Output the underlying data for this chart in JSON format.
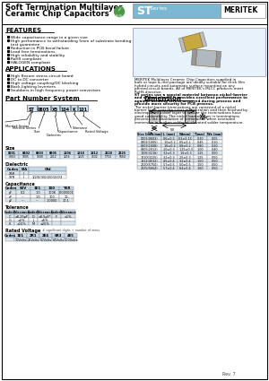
{
  "title_line1": "Soft Termination Multilayer",
  "title_line2": "Ceramic Chip Capacitors",
  "brand": "MERITEK",
  "header_bg": "#7ab8d4",
  "features_title": "FEATURES",
  "features": [
    "Wide capacitance range in a given size",
    "High performance to withstanding 5mm of substrate bending\ntest guarantee",
    "Reduction in PCB bend failure",
    "Lead free terminations",
    "High reliability and stability",
    "RoHS compliant",
    "HALOGEN compliant"
  ],
  "applications_title": "APPLICATIONS",
  "applications": [
    "High flexure stress circuit board",
    "DC to DC converter",
    "High voltage coupling/DC blocking",
    "Back-lighting Inverters",
    "Snubbers in high frequency power convertors"
  ],
  "part_number_title": "Part Number System",
  "dimension_title": "Dimension",
  "desc_lines_normal": [
    "MERITEK Multilayer Ceramic Chip Capacitors supplied in",
    "bulk or tape & reel package are ideally suitable for thick film",
    "hybrid circuits and automatic surface mounting on any",
    "printed circuit boards. All of MERITEK's MLCC products meet",
    "RoHS directive."
  ],
  "desc_lines_bold": [
    "ST series use a special material between nickel-barrier",
    "and ceramic body. It provides excellent performance to",
    "against bending stress occurred during process and",
    "provide more security for PCB process."
  ],
  "desc_lines_normal2": [
    "The nickel-barrier terminations are consisted of a nickel",
    "barrier layer over the silver metallization and then finished by",
    "electroplated solder layer to ensure the terminations have",
    "good solderability. The nickel barrier layer in terminations",
    "prevents the dissolution of termination when extended",
    "immersion in molten solder at elevated solder temperature."
  ],
  "pn_parts": [
    "ST",
    "0805",
    "X5",
    "104",
    "K",
    "101"
  ],
  "pn_labels": [
    "Meritek Series",
    "Size",
    "Dielectric",
    "Capacitance",
    "Tolerance",
    "Rated Voltage"
  ],
  "size_codes": [
    "0201",
    "0402",
    "0603",
    "0805",
    "1206",
    "1210",
    "1812",
    "2220",
    "2225"
  ],
  "size_metric": [
    "0603",
    "1005",
    "1608",
    "2012",
    "3216",
    "3225",
    "4532",
    "5750",
    "5664"
  ],
  "dielectric_rows": [
    [
      "X5R",
      "II",
      ""
    ],
    [
      "X7R",
      "II",
      "1/2/0/3/0/2/0/2/0/3"
    ]
  ],
  "cap_rows": [
    [
      "pF",
      "0.2",
      "1.0",
      "100K",
      "0.000001"
    ],
    [
      "nF",
      "---",
      "1.0",
      "100",
      "10"
    ],
    [
      "μF",
      "---",
      "---",
      "1.0000",
      "10.1"
    ]
  ],
  "tol_data": [
    [
      "C",
      "±0.25pF",
      "D",
      "±0.5pF*",
      "F",
      "±1%"
    ],
    [
      "G",
      "±2%",
      "J",
      "±5%",
      "",
      ""
    ],
    [
      "K",
      "±10%",
      "M",
      "±20%",
      "",
      ""
    ]
  ],
  "rv_headers": [
    "Codes",
    "1E1",
    "2R1",
    "2E4",
    "6R3",
    "4E5"
  ],
  "rv_row": [
    "",
    "10Volts",
    "25Volts",
    "50Volts",
    "63Volts",
    "100Volts"
  ],
  "dim_rows": [
    [
      "0201(0603)",
      "0.6±0.2",
      "0.3±0.15",
      "0.30",
      "0.05"
    ],
    [
      "0402(1005)",
      "1.0±0.2",
      "0.5±0.2",
      "0.45",
      "0.10"
    ],
    [
      "0603(1608)",
      "1.6±0.2",
      "0.8±0.2",
      "0.80",
      "0.20"
    ],
    [
      "0805(2012)",
      "2.0±0.3",
      "1.25±0.3",
      "1.00",
      "0.40"
    ],
    [
      "1206(3216)",
      "3.2±0.3",
      "1.6±0.3",
      "1.25",
      "0.50"
    ],
    [
      "1210(3225)",
      "3.2±0.3",
      "2.5±0.3",
      "1.25",
      "0.50"
    ],
    [
      "1812(4532)",
      "4.5±0.4",
      "3.2±0.4",
      "1.50",
      "0.50"
    ],
    [
      "2220(5750)",
      "5.7±0.5",
      "5.0±0.5",
      "1.50",
      "0.50"
    ],
    [
      "2225(5664)",
      "5.7±0.4",
      "6.4±0.4",
      "1.60",
      "0.50"
    ]
  ],
  "rev": "Rev. 7",
  "bg_color": "#ffffff",
  "table_header_bg": "#c5d9e8",
  "row_bg_even": "#dce8f0",
  "row_bg_odd": "#ffffff"
}
